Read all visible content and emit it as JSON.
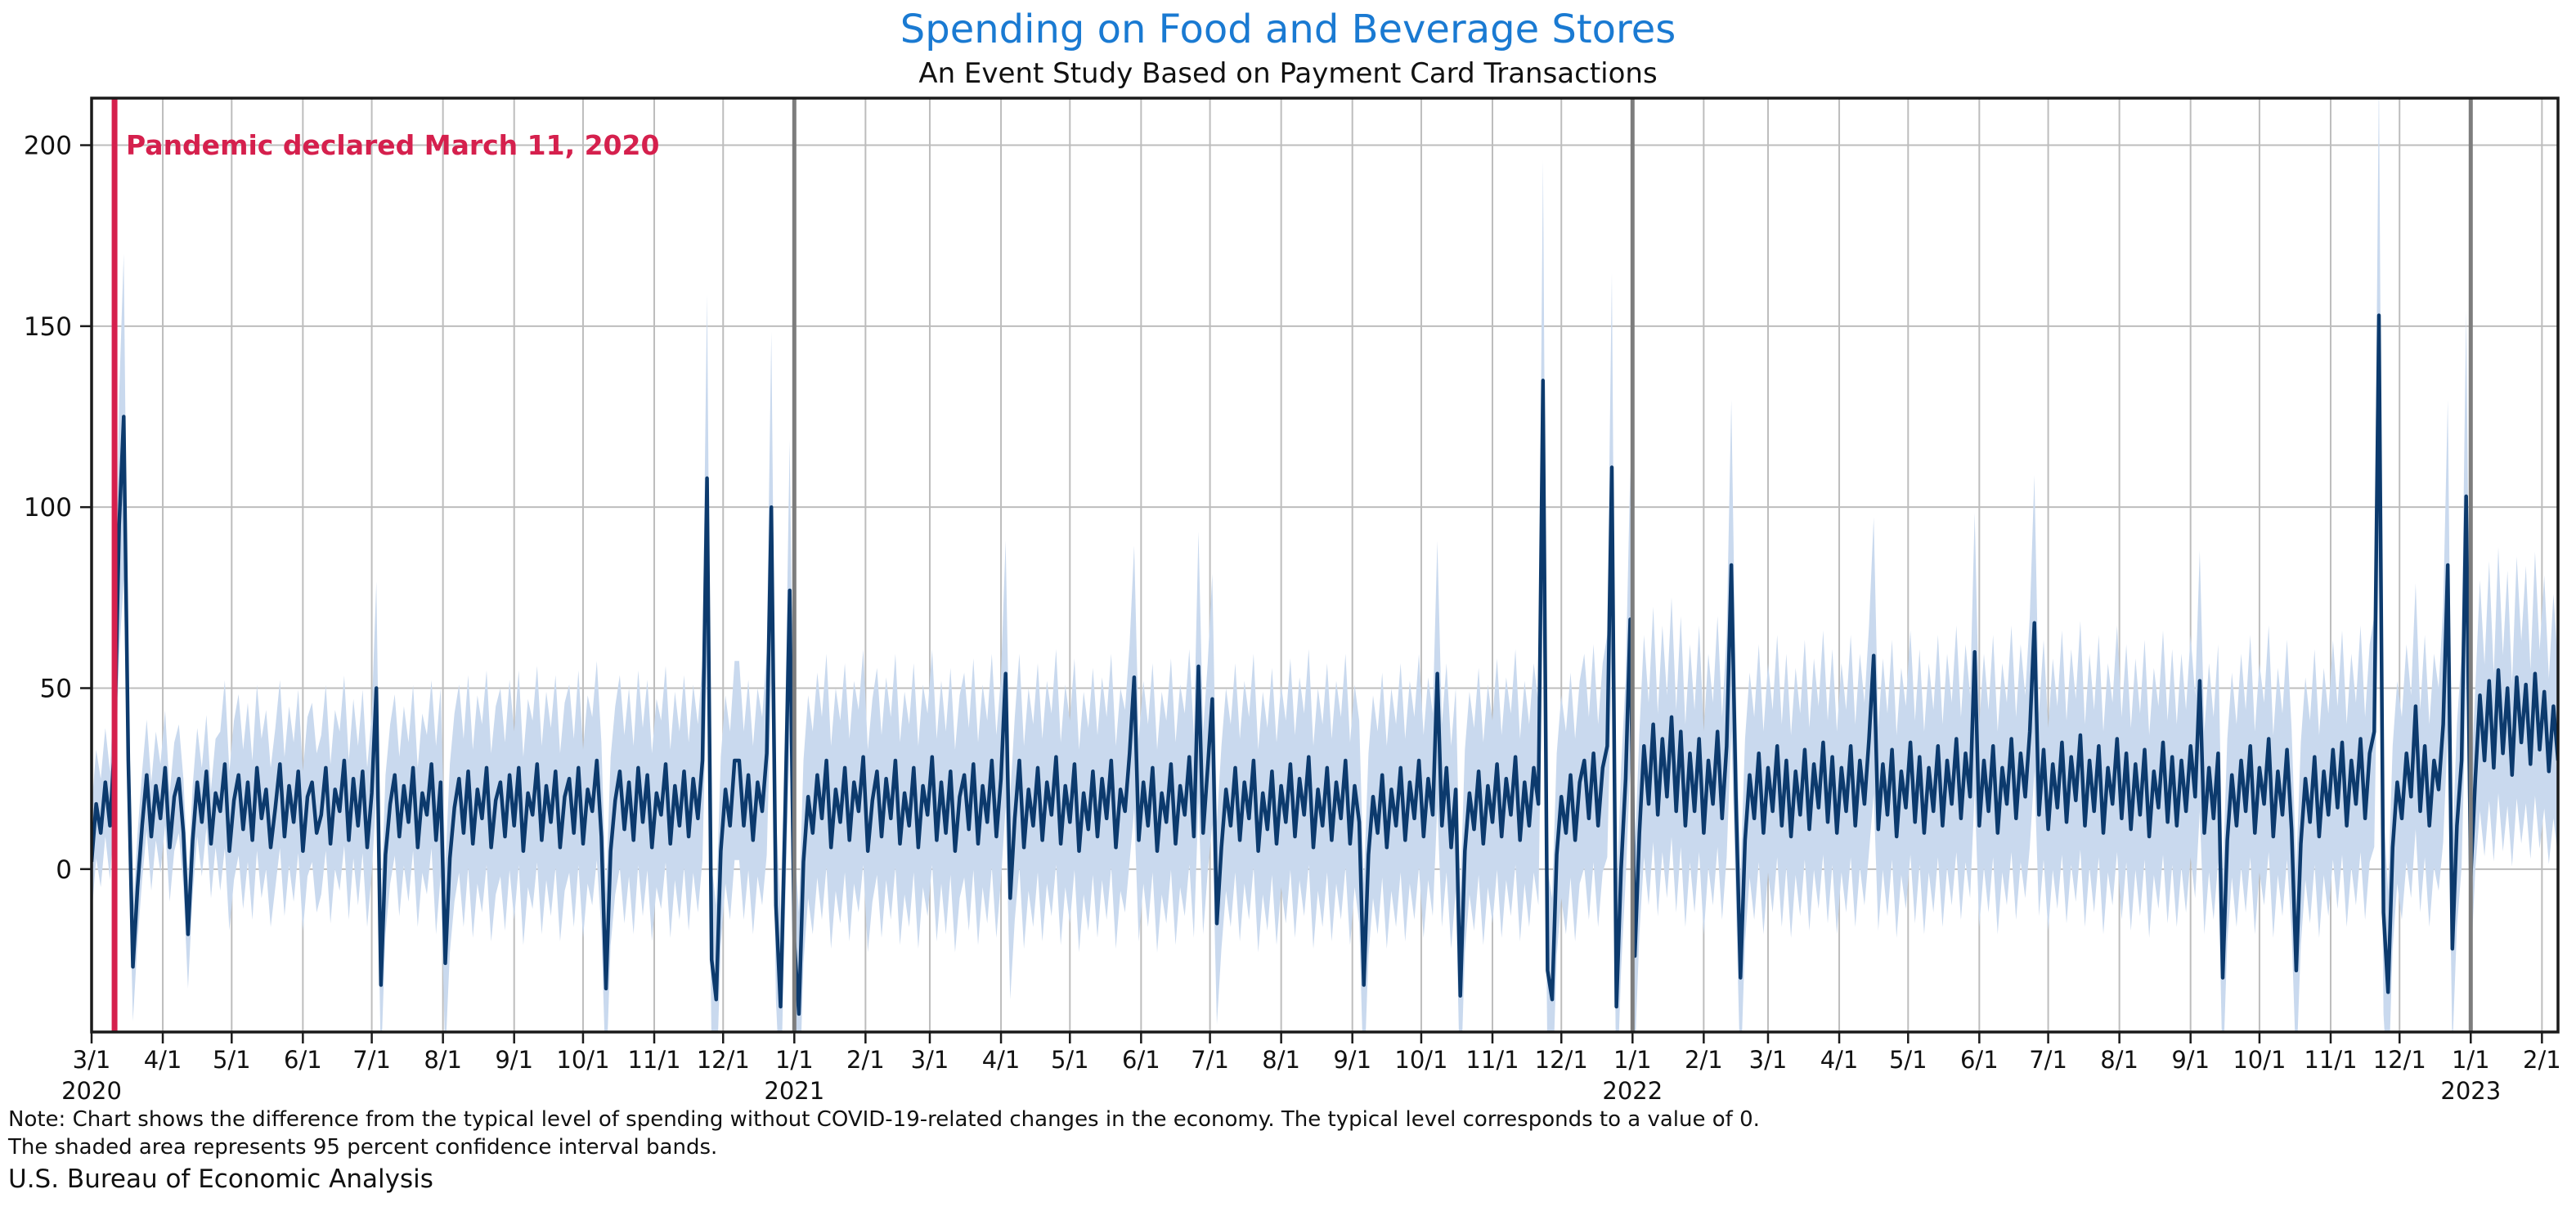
{
  "header": {
    "title": "Spending on Food and Beverage Stores",
    "subtitle": "An Event Study Based on Payment Card Transactions"
  },
  "annotation": {
    "text": "Pandemic declared March 11, 2020"
  },
  "notes": {
    "line1": "Note: Chart shows the difference from the typical level of spending without COVID-19-related changes in the economy. The typical level corresponds to a value of 0.",
    "line2": "The shaded area represents 95 percent confidence interval bands."
  },
  "source": "U.S. Bureau of Economic Analysis",
  "chart_data": {
    "type": "line",
    "title": "Spending on Food and Beverage Stores",
    "subtitle": "An Event Study Based on Payment Card Transactions",
    "xlabel": "",
    "ylabel": "",
    "x_start": "2020-03-01",
    "x_step_days": 2,
    "ylim": [
      -45,
      213
    ],
    "yticks": [
      0,
      50,
      100,
      150,
      200
    ],
    "grid": true,
    "xticks": [
      {
        "l": "3/1",
        "d": 0,
        "y": "2020"
      },
      {
        "l": "4/1",
        "d": 31
      },
      {
        "l": "5/1",
        "d": 61
      },
      {
        "l": "6/1",
        "d": 92
      },
      {
        "l": "7/1",
        "d": 122
      },
      {
        "l": "8/1",
        "d": 153
      },
      {
        "l": "9/1",
        "d": 184
      },
      {
        "l": "10/1",
        "d": 214
      },
      {
        "l": "11/1",
        "d": 245
      },
      {
        "l": "12/1",
        "d": 275
      },
      {
        "l": "1/1",
        "d": 306,
        "y": "2021"
      },
      {
        "l": "2/1",
        "d": 337
      },
      {
        "l": "3/1",
        "d": 365
      },
      {
        "l": "4/1",
        "d": 396
      },
      {
        "l": "5/1",
        "d": 426
      },
      {
        "l": "6/1",
        "d": 457
      },
      {
        "l": "7/1",
        "d": 487
      },
      {
        "l": "8/1",
        "d": 518
      },
      {
        "l": "9/1",
        "d": 549
      },
      {
        "l": "10/1",
        "d": 579
      },
      {
        "l": "11/1",
        "d": 610
      },
      {
        "l": "12/1",
        "d": 640
      },
      {
        "l": "1/1",
        "d": 671,
        "y": "2022"
      },
      {
        "l": "2/1",
        "d": 702
      },
      {
        "l": "3/1",
        "d": 730
      },
      {
        "l": "4/1",
        "d": 761
      },
      {
        "l": "5/1",
        "d": 791
      },
      {
        "l": "6/1",
        "d": 822
      },
      {
        "l": "7/1",
        "d": 852
      },
      {
        "l": "8/1",
        "d": 883
      },
      {
        "l": "9/1",
        "d": 914
      },
      {
        "l": "10/1",
        "d": 944
      },
      {
        "l": "11/1",
        "d": 975
      },
      {
        "l": "12/1",
        "d": 1005
      },
      {
        "l": "1/1",
        "d": 1036,
        "y": "2023"
      },
      {
        "l": "2/1",
        "d": 1067
      }
    ],
    "year_lines_days": [
      306,
      671,
      1036
    ],
    "event_line": {
      "day": 10,
      "label": "Pandemic declared March 11, 2020"
    },
    "band": {
      "label": "95 percent confidence interval bands",
      "halfwidth_segments": [
        {
          "from_day": 0,
          "hw": 15
        },
        {
          "from_day": 56,
          "hw": 22
        },
        {
          "from_day": 150,
          "hw": 26
        },
        {
          "from_day": 306,
          "hw": 28
        },
        {
          "from_day": 1036,
          "hw": 25
        }
      ],
      "spike_threshold": 25,
      "spike_extra_factor": 0.3
    },
    "series": [
      {
        "name": "Difference from typical level of spending",
        "values": [
          2,
          18,
          10,
          24,
          12,
          35,
          95,
          125,
          30,
          -27,
          -5,
          12,
          26,
          9,
          23,
          14,
          28,
          6,
          20,
          25,
          10,
          -18,
          8,
          24,
          13,
          27,
          7,
          21,
          16,
          29,
          5,
          19,
          26,
          11,
          24,
          8,
          28,
          14,
          22,
          6,
          17,
          29,
          9,
          23,
          13,
          27,
          5,
          20,
          24,
          10,
          15,
          28,
          7,
          22,
          16,
          30,
          8,
          25,
          12,
          27,
          6,
          21,
          50,
          -32,
          4,
          18,
          26,
          9,
          23,
          13,
          28,
          6,
          21,
          15,
          29,
          8,
          24,
          -26,
          3,
          17,
          25,
          10,
          27,
          7,
          22,
          14,
          28,
          6,
          19,
          24,
          9,
          26,
          12,
          28,
          5,
          21,
          15,
          29,
          8,
          23,
          13,
          27,
          6,
          20,
          25,
          10,
          28,
          7,
          22,
          16,
          30,
          9,
          -33,
          5,
          19,
          27,
          11,
          24,
          8,
          28,
          13,
          26,
          6,
          21,
          15,
          29,
          7,
          23,
          12,
          27,
          9,
          25,
          14,
          30,
          108,
          -25,
          -36,
          5,
          22,
          12,
          30,
          30,
          12,
          26,
          8,
          24,
          16,
          32,
          100,
          -10,
          -38,
          15,
          77,
          -20,
          -40,
          2,
          20,
          10,
          26,
          14,
          30,
          6,
          22,
          13,
          28,
          8,
          24,
          16,
          31,
          5,
          19,
          27,
          9,
          25,
          14,
          30,
          7,
          21,
          12,
          28,
          6,
          23,
          15,
          31,
          8,
          24,
          10,
          27,
          5,
          20,
          26,
          11,
          29,
          7,
          23,
          13,
          30,
          9,
          25,
          54,
          -8,
          14,
          30,
          6,
          22,
          12,
          28,
          8,
          24,
          15,
          31,
          7,
          23,
          13,
          29,
          5,
          21,
          11,
          27,
          9,
          25,
          14,
          30,
          6,
          22,
          16,
          32,
          53,
          8,
          24,
          12,
          28,
          5,
          21,
          13,
          29,
          7,
          23,
          15,
          31,
          9,
          56,
          10,
          28,
          47,
          -15,
          6,
          22,
          12,
          28,
          8,
          24,
          14,
          30,
          5,
          21,
          11,
          27,
          7,
          23,
          13,
          29,
          9,
          25,
          15,
          31,
          6,
          22,
          12,
          28,
          8,
          24,
          14,
          30,
          7,
          23,
          13,
          -32,
          4,
          20,
          10,
          26,
          6,
          22,
          12,
          28,
          8,
          24,
          14,
          30,
          9,
          25,
          15,
          54,
          12,
          28,
          6,
          22,
          -35,
          5,
          21,
          11,
          27,
          7,
          23,
          13,
          29,
          9,
          25,
          15,
          31,
          8,
          24,
          12,
          28,
          18,
          135,
          -28,
          -36,
          4,
          20,
          10,
          26,
          8,
          24,
          30,
          14,
          32,
          12,
          28,
          34,
          111,
          -38,
          0,
          25,
          69,
          -24,
          10,
          34,
          18,
          40,
          15,
          36,
          20,
          42,
          16,
          38,
          12,
          32,
          16,
          36,
          10,
          30,
          18,
          38,
          14,
          34,
          84,
          20,
          -30,
          8,
          26,
          14,
          32,
          10,
          28,
          16,
          34,
          12,
          30,
          9,
          27,
          15,
          33,
          11,
          29,
          17,
          35,
          13,
          31,
          10,
          28,
          16,
          34,
          12,
          30,
          18,
          36,
          59,
          11,
          29,
          15,
          33,
          9,
          27,
          17,
          35,
          13,
          31,
          10,
          28,
          16,
          34,
          12,
          30,
          18,
          36,
          14,
          32,
          20,
          60,
          12,
          30,
          16,
          34,
          10,
          28,
          18,
          36,
          14,
          32,
          20,
          38,
          68,
          15,
          33,
          11,
          29,
          17,
          35,
          13,
          31,
          19,
          37,
          12,
          30,
          16,
          34,
          10,
          28,
          18,
          36,
          14,
          32,
          11,
          29,
          15,
          33,
          9,
          27,
          17,
          35,
          13,
          31,
          12,
          30,
          16,
          34,
          20,
          52,
          10,
          28,
          14,
          32,
          -30,
          8,
          26,
          12,
          30,
          16,
          34,
          10,
          28,
          18,
          36,
          9,
          27,
          15,
          33,
          11,
          -28,
          7,
          25,
          13,
          31,
          9,
          27,
          15,
          33,
          17,
          35,
          12,
          30,
          18,
          36,
          14,
          32,
          38,
          153,
          -12,
          -34,
          6,
          24,
          14,
          32,
          20,
          45,
          16,
          34,
          12,
          30,
          22,
          40,
          84,
          -22,
          12,
          30,
          103,
          -2,
          25,
          48,
          30,
          52,
          28,
          55,
          32,
          50,
          26,
          53,
          35,
          51,
          29,
          54,
          33,
          49,
          27,
          45,
          30
        ]
      }
    ],
    "colors": {
      "title": "#1a7ad2",
      "line": "#0c3a6d",
      "band": "#c9d9ee",
      "grid": "#bdbdbd",
      "year_line": "#7d7d7d",
      "event_line": "#d5204d",
      "spine": "#1a1a1a",
      "tick_label": "#111111"
    }
  }
}
